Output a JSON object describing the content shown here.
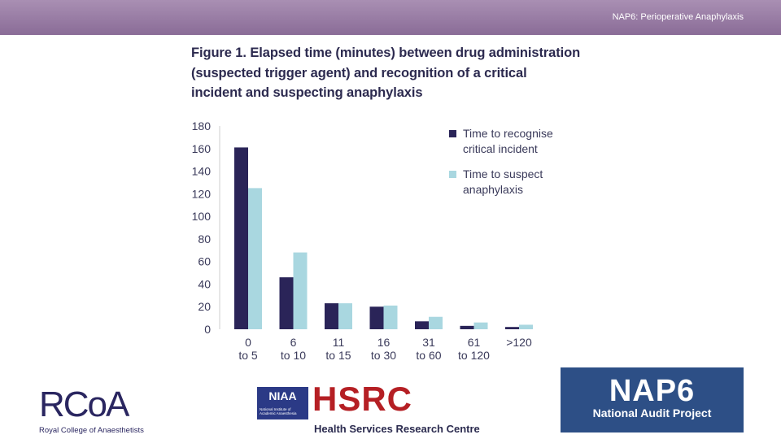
{
  "header": {
    "title": "NAP6: Perioperative Anaphylaxis"
  },
  "figure": {
    "title_lines": [
      "Figure 1. Elapsed time (minutes) between drug administration",
      "(suspected trigger agent) and recognition of a critical",
      "incident and suspecting anaphylaxis"
    ]
  },
  "chart_data": {
    "type": "bar",
    "title": "Figure 1. Elapsed time (minutes) between drug administration (suspected trigger agent) and recognition of a critical incident and suspecting anaphylaxis",
    "categories": [
      [
        "0",
        "to 5"
      ],
      [
        "6",
        "to 10"
      ],
      [
        "11",
        "to 15"
      ],
      [
        "16",
        "to 30"
      ],
      [
        "31",
        "to 60"
      ],
      [
        "61",
        "to 120"
      ],
      [
        ">120"
      ]
    ],
    "series": [
      {
        "name": [
          "Time to recognise",
          "critical incident"
        ],
        "color": "#2a2458",
        "values": [
          161,
          46,
          23,
          20,
          7,
          3,
          2
        ]
      },
      {
        "name": [
          "Time to suspect",
          "anaphylaxis"
        ],
        "color": "#a9d7e0",
        "values": [
          125,
          68,
          23,
          21,
          11,
          6,
          4
        ]
      }
    ],
    "yticks": [
      0,
      20,
      40,
      60,
      80,
      100,
      120,
      140,
      160,
      180
    ],
    "ylim": [
      0,
      180
    ],
    "xlabel": "",
    "ylabel": "",
    "legend_position": "top-right"
  },
  "logos": {
    "rcoa": {
      "letters": "RCoA",
      "subtitle": "Royal College of Anaesthetists"
    },
    "niaa": {
      "name": "NIAA",
      "subtitle": "National Institute of Academic Anaesthesia"
    },
    "hsrc": {
      "name": "HSRC",
      "subtitle": "Health Services Research Centre"
    },
    "nap6": {
      "name": "NAP6",
      "subtitle": "National Audit Project"
    }
  }
}
